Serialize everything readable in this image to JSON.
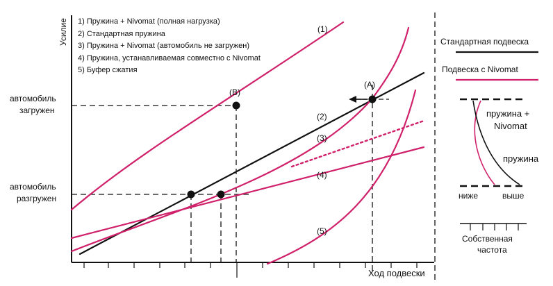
{
  "axes": {
    "y_label": "Усилие",
    "x_label": "Ход подвески"
  },
  "legend_items": [
    "1) Пружина + Nivomat (полная нагрузка)",
    "2) Стандартная пружина",
    "3) Пружина + Nivomat (автомобиль не загружен)",
    "4) Пружина, устанавливаемая совместно с Nivomat",
    "5) Буфер сжатия"
  ],
  "curve_labels": [
    "(1)",
    "(2)",
    "(3)",
    "(4)",
    "(5)"
  ],
  "points": {
    "a": "(A)",
    "b": "(B)"
  },
  "load_labels": {
    "loaded_line1": "автомобиль",
    "loaded_line2": "загружен",
    "unloaded_line1": "автомобиль",
    "unloaded_line2": "разгружен"
  },
  "side_legend": {
    "standard": "Стандартная подвеска",
    "nivomat": "Подвеска с Nivomat"
  },
  "frequency_diagram": {
    "spring_nivomat_line1": "пружина +",
    "spring_nivomat_line2": "Nivomat",
    "spring": "пружина",
    "lower": "ниже",
    "higher": "выше",
    "axis_line1": "Собственная",
    "axis_line2": "частота"
  },
  "colors": {
    "nivomat": "#d0206a",
    "standard": "#111111",
    "grid": "#111111"
  }
}
